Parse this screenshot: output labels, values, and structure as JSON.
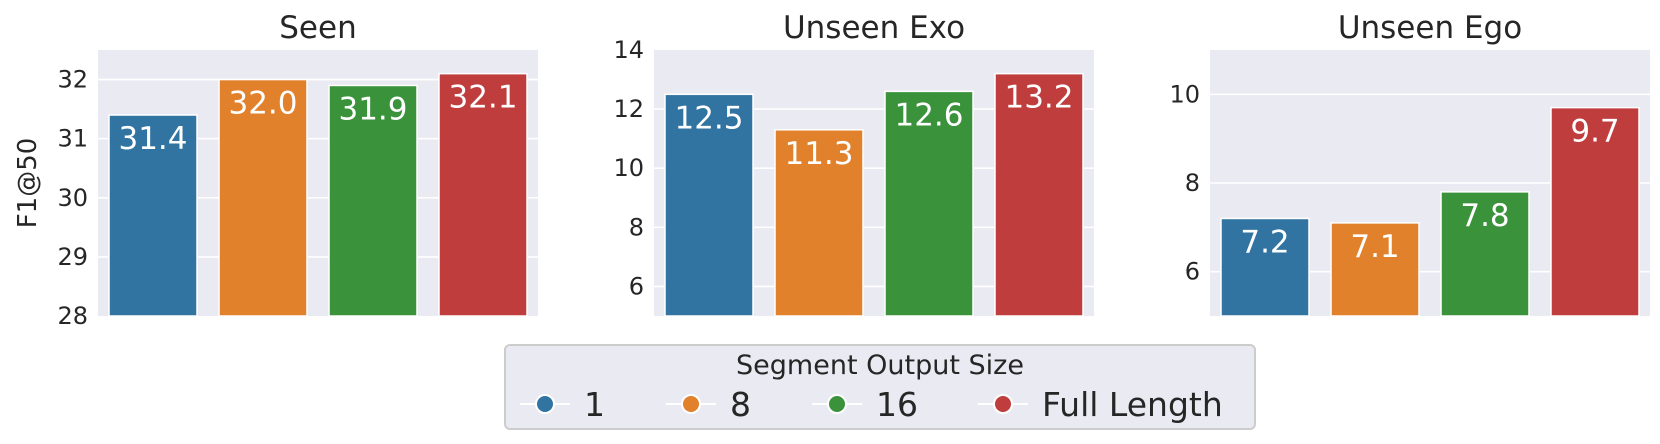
{
  "chart_data": [
    {
      "type": "bar",
      "title": "Seen",
      "ylabel": "F1@50",
      "categories": [
        "1",
        "8",
        "16",
        "Full Length"
      ],
      "values": [
        31.4,
        32.0,
        31.9,
        32.1
      ],
      "value_labels": [
        "31.4",
        "32.0",
        "31.9",
        "32.1"
      ],
      "ylim": [
        28,
        32.5
      ],
      "yticks": [
        28,
        29,
        30,
        31,
        32
      ],
      "grid": true
    },
    {
      "type": "bar",
      "title": "Unseen Exo",
      "ylabel": "",
      "categories": [
        "1",
        "8",
        "16",
        "Full Length"
      ],
      "values": [
        12.5,
        11.3,
        12.6,
        13.2
      ],
      "value_labels": [
        "12.5",
        "11.3",
        "12.6",
        "13.2"
      ],
      "ylim": [
        5,
        14
      ],
      "yticks": [
        6,
        8,
        10,
        12,
        14
      ],
      "grid": true
    },
    {
      "type": "bar",
      "title": "Unseen Ego",
      "ylabel": "",
      "categories": [
        "1",
        "8",
        "16",
        "Full Length"
      ],
      "values": [
        7.2,
        7.1,
        7.8,
        9.7
      ],
      "value_labels": [
        "7.2",
        "7.1",
        "7.8",
        "9.7"
      ],
      "ylim": [
        5,
        11
      ],
      "yticks": [
        6,
        8,
        10
      ],
      "grid": true
    }
  ],
  "legend": {
    "title": "Segment Output Size",
    "placement": "bottom-center",
    "items": [
      {
        "label": "1",
        "color": "#3274a1"
      },
      {
        "label": "8",
        "color": "#e1812c"
      },
      {
        "label": "16",
        "color": "#3a923a"
      },
      {
        "label": "Full Length",
        "color": "#c03d3e"
      }
    ]
  },
  "colors": {
    "plot_background": "#eaeaf2",
    "grid": "#ffffff",
    "text": "#262626",
    "value_label": "#ffffff"
  }
}
